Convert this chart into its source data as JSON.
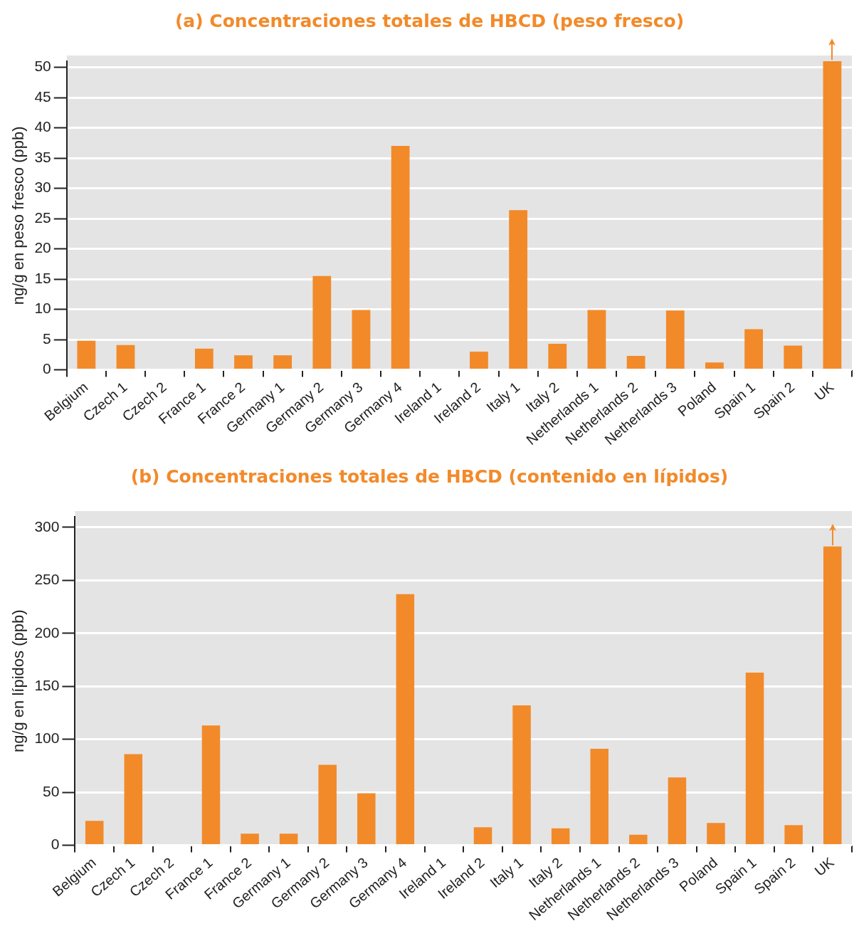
{
  "chart_data": [
    {
      "type": "bar",
      "title": "(a) Concentraciones totales de HBCD (peso fresco)",
      "ylabel": "ng/g en peso fresco (ppb)",
      "categories": [
        "Belgium",
        "Czech 1",
        "Czech 2",
        "France 1",
        "France 2",
        "Germany 1",
        "Germany 2",
        "Germany 3",
        "Germany 4",
        "Ireland 1",
        "Ireland 2",
        "Italy 1",
        "Italy 2",
        "Netherlands 1",
        "Netherlands 2",
        "Netherlands 3",
        "Poland",
        "Spain 1",
        "Spain 2",
        "UK"
      ],
      "values": [
        4.8,
        4.1,
        null,
        3.5,
        2.4,
        2.4,
        15.5,
        9.9,
        37,
        null,
        3.0,
        26.4,
        4.3,
        9.9,
        2.3,
        9.8,
        1.2,
        6.7,
        4.0,
        51
      ],
      "color": "#f28a2a",
      "ylim": [
        0,
        51
      ],
      "yticks": [
        0,
        5,
        10,
        15,
        20,
        25,
        30,
        35,
        40,
        45,
        50
      ],
      "grid": "y",
      "legend": false
    },
    {
      "type": "bar",
      "title": "(b) Concentraciones totales de HBCD (contenido en lípidos)",
      "ylabel": "ng/g en lípidos (ppb)",
      "categories": [
        "Belgium",
        "Czech 1",
        "Czech 2",
        "France 1",
        "France 2",
        "Germany 1",
        "Germany 2",
        "Germany 3",
        "Germany 4",
        "Ireland 1",
        "Ireland 2",
        "Italy 1",
        "Italy 2",
        "Netherlands 1",
        "Netherlands 2",
        "Netherlands 3",
        "Poland",
        "Spain 1",
        "Spain 2",
        "UK"
      ],
      "values": [
        23,
        86,
        null,
        113,
        11,
        11,
        76,
        49,
        237,
        null,
        17,
        132,
        16,
        91,
        10,
        64,
        21,
        163,
        19,
        282
      ],
      "color": "#f28a2a",
      "ylim": [
        0,
        310
      ],
      "yticks": [
        0,
        50,
        100,
        150,
        200,
        250,
        300
      ],
      "grid": "y",
      "legend": false
    }
  ]
}
